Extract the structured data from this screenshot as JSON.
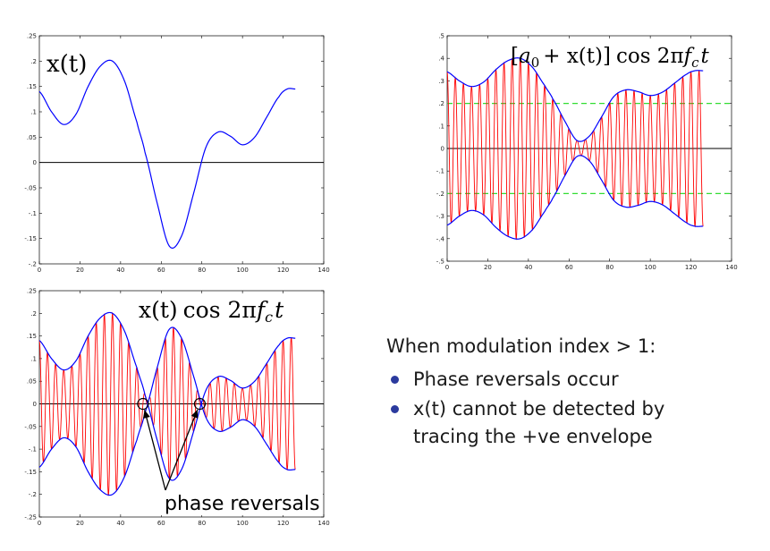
{
  "chart_data": [
    {
      "type": "line",
      "title": "x(t)",
      "xlim": [
        0,
        140
      ],
      "ylim": [
        -0.2,
        0.25
      ],
      "xticks": [
        0,
        20,
        40,
        60,
        80,
        100,
        120,
        140
      ],
      "yticks": [
        -0.2,
        -0.15,
        -0.1,
        -0.05,
        0,
        0.05,
        0.1,
        0.15,
        0.2,
        0.25
      ],
      "grid": false,
      "series": [
        {
          "color": "#0000ff",
          "x": [
            0,
            6,
            12,
            18,
            24,
            30,
            36,
            42,
            48,
            52,
            58,
            64,
            70,
            76,
            82,
            88,
            94,
            100,
            106,
            112,
            118,
            122,
            126
          ],
          "values": [
            0.14,
            0.1,
            0.075,
            0.095,
            0.15,
            0.19,
            0.2,
            0.16,
            0.08,
            0.02,
            -0.08,
            -0.165,
            -0.145,
            -0.06,
            0.03,
            0.06,
            0.052,
            0.035,
            0.05,
            0.09,
            0.13,
            0.145,
            0.145
          ]
        }
      ],
      "reference_line": {
        "y": 0,
        "color": "#000000"
      }
    },
    {
      "type": "line",
      "title": "[a0 + x(t)] cos 2πfct",
      "xlim": [
        0,
        140
      ],
      "ylim": [
        -0.5,
        0.5
      ],
      "xticks": [
        0,
        20,
        40,
        60,
        80,
        100,
        120,
        140
      ],
      "yticks": [
        -0.5,
        -0.4,
        -0.3,
        -0.2,
        -0.1,
        0,
        0.1,
        0.2,
        0.3,
        0.4,
        0.5
      ],
      "grid": false,
      "offset_a0": 0.2,
      "carrier_period": 4,
      "series": [
        {
          "color": "#0000ff",
          "role": "upper envelope"
        },
        {
          "color": "#0000ff",
          "role": "lower envelope"
        },
        {
          "color": "#ff0000",
          "role": "modulated carrier"
        }
      ],
      "dashed_lines": {
        "y": [
          0.2,
          -0.2
        ],
        "color": "#33dd33"
      },
      "reference_line": {
        "y": 0,
        "color": "#000000"
      }
    },
    {
      "type": "line",
      "title": "x(t) cos 2πfct",
      "xlim": [
        0,
        140
      ],
      "ylim": [
        -0.25,
        0.25
      ],
      "xticks": [
        0,
        20,
        40,
        60,
        80,
        100,
        120,
        140
      ],
      "yticks": [
        -0.25,
        -0.2,
        -0.15,
        -0.1,
        -0.05,
        0,
        0.05,
        0.1,
        0.15,
        0.2,
        0.25
      ],
      "grid": false,
      "carrier_period": 4,
      "series": [
        {
          "color": "#0000ff",
          "role": "upper envelope"
        },
        {
          "color": "#0000ff",
          "role": "lower envelope"
        },
        {
          "color": "#ff0000",
          "role": "modulated carrier"
        }
      ],
      "reference_line": {
        "y": 0,
        "color": "#000000"
      },
      "annotation": {
        "text": "phase reversals",
        "points_x": [
          51,
          79
        ]
      }
    }
  ],
  "chart_titles": {
    "c1": {
      "main": "x(t)"
    },
    "c2": {
      "lb": "[",
      "a": "a",
      "sub0": "0",
      "mid": "+ x(t)]",
      "cos": "cos 2π",
      "f": "f",
      "subc": "c",
      "t": "t"
    },
    "c3": {
      "xt": "x(t)",
      "cos": "cos 2π",
      "f": "f",
      "subc": "c",
      "t": "t"
    }
  },
  "annotation_label": "phase reversals",
  "bullets": {
    "heading": "When modulation index > 1:",
    "items": [
      "Phase reversals occur",
      "x(t) cannot be detected by tracing the +ve envelope"
    ],
    "item2_lines": [
      "x(t) cannot be detected by",
      "tracing the +ve envelope"
    ]
  }
}
